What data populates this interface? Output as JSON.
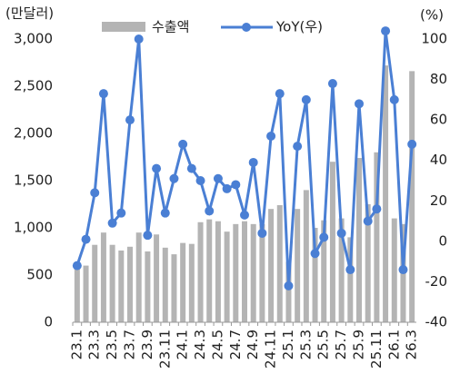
{
  "chart_data": {
    "type": "bar-line",
    "y_label": "(만달러)",
    "y2_label": "(%)",
    "categories": [
      "23.1",
      null,
      "23.3",
      null,
      "23.5",
      null,
      "23.7",
      null,
      "23.9",
      null,
      "23.11",
      null,
      "24.1",
      null,
      "24.3",
      null,
      "24.5",
      null,
      "24.7",
      null,
      "24.9",
      null,
      "24.11",
      null,
      "25.1",
      null,
      "25.3",
      null,
      "25.5",
      null,
      "25.7",
      null,
      "25.9",
      null,
      "25.11",
      null,
      "26.1",
      null,
      "26.3"
    ],
    "series": [
      {
        "name": "수출액",
        "color": "#b4b4b4",
        "axis": "y",
        "type": "bar",
        "values": [
          600,
          600,
          820,
          950,
          820,
          760,
          800,
          950,
          750,
          930,
          790,
          720,
          840,
          830,
          1060,
          1090,
          1070,
          960,
          1040,
          1070,
          1040,
          1040,
          1200,
          1240,
          640,
          1200,
          1400,
          1000,
          1080,
          1700,
          1100,
          900,
          1740,
          1250,
          1800,
          2720,
          1100,
          1040,
          2660
        ]
      },
      {
        "name": "YoY(우)",
        "color": "#4a7fd4",
        "axis": "y2",
        "type": "line",
        "values": [
          -12,
          1,
          24,
          73,
          9,
          14,
          60,
          100,
          3,
          36,
          14,
          31,
          48,
          36,
          30,
          15,
          31,
          26,
          28,
          13,
          39,
          4,
          52,
          73,
          -22,
          47,
          70,
          -6,
          2,
          78,
          4,
          -14,
          68,
          10,
          16,
          104,
          70,
          -14,
          48
        ]
      }
    ],
    "ylim": [
      0,
      3000
    ],
    "yticks": [
      0,
      500,
      {
        "value": 1000,
        "label": "1,000"
      },
      {
        "value": 1500,
        "label": "1,500"
      },
      {
        "value": 2000,
        "label": "2,000"
      },
      {
        "value": 2500,
        "label": "2,500"
      },
      {
        "value": 3000,
        "label": "3,000"
      }
    ],
    "y2lim": [
      -40,
      100
    ],
    "y2ticks": [
      -40,
      -20,
      0,
      20,
      40,
      60,
      80,
      100
    ]
  }
}
